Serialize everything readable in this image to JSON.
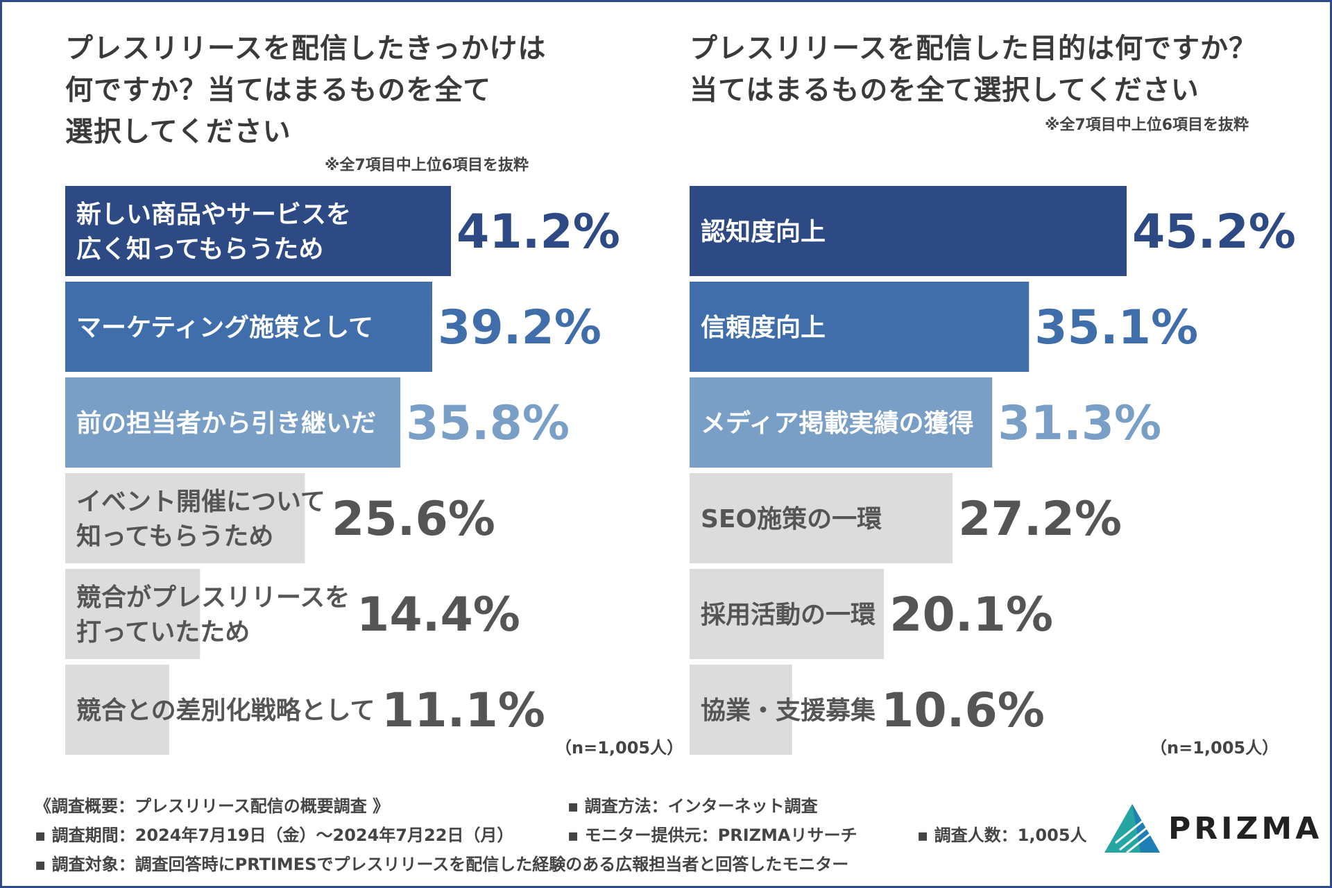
{
  "chart_data": [
    {
      "type": "bar",
      "orientation": "horizontal",
      "title": "プレスリリースを配信したきっかけは何ですか？当てはまるものを全て選択してください",
      "title_lines": [
        "プレスリリースを配信したきっかけは",
        "何ですか？当てはまるものを全て",
        "選択してください"
      ],
      "note": "※全7項目中上位6項目を抜粋",
      "sample": "（n=1,005人）",
      "xlim": [
        0,
        45.2
      ],
      "unit": "%",
      "categories": [
        [
          "新しい商品やサービスを",
          "広く知ってもらうため"
        ],
        [
          "マーケティング施策として"
        ],
        [
          "前の担当者から引き継いだ"
        ],
        [
          "イベント開催について",
          "知ってもらうため"
        ],
        [
          "競合がプレスリリースを",
          "打っていたため"
        ],
        [
          "競合との差別化戦略として"
        ]
      ],
      "values": [
        41.2,
        39.2,
        35.8,
        25.6,
        14.4,
        11.1
      ],
      "value_labels": [
        "41.2%",
        "39.2%",
        "35.8%",
        "25.6%",
        "14.4%",
        "11.1%"
      ],
      "bar_colors": [
        "#2d4a85",
        "#3f6eaa",
        "#7a9fc6",
        "#dcdcdc",
        "#dcdcdc",
        "#dcdcdc"
      ],
      "label_colors": [
        "#ffffff",
        "#ffffff",
        "#ffffff",
        "#555555",
        "#555555",
        "#555555"
      ],
      "value_colors": [
        "#2d4a85",
        "#3f6eaa",
        "#7a9fc6",
        "#555555",
        "#555555",
        "#555555"
      ]
    },
    {
      "type": "bar",
      "orientation": "horizontal",
      "title": "プレスリリースを配信した目的は何ですか？当てはまるものを全て選択してください",
      "title_lines": [
        "プレスリリースを配信した目的は何ですか？",
        "当てはまるものを全て選択してください"
      ],
      "note": "※全7項目中上位6項目を抜粋",
      "sample": "（n=1,005人）",
      "xlim": [
        0,
        45.2
      ],
      "unit": "%",
      "categories": [
        [
          "認知度向上"
        ],
        [
          "信頼度向上"
        ],
        [
          "メディア掲載実績の獲得"
        ],
        [
          "SEO施策の一環"
        ],
        [
          "採用活動の一環"
        ],
        [
          "協業・支援募集"
        ]
      ],
      "values": [
        45.2,
        35.1,
        31.3,
        27.2,
        20.1,
        10.6
      ],
      "value_labels": [
        "45.2%",
        "35.1%",
        "31.3%",
        "27.2%",
        "20.1%",
        "10.6%"
      ],
      "bar_colors": [
        "#2d4a85",
        "#3f6eaa",
        "#7a9fc6",
        "#dcdcdc",
        "#dcdcdc",
        "#dcdcdc"
      ],
      "label_colors": [
        "#ffffff",
        "#ffffff",
        "#ffffff",
        "#555555",
        "#555555",
        "#555555"
      ],
      "value_colors": [
        "#2d4a85",
        "#3f6eaa",
        "#7a9fc6",
        "#555555",
        "#555555",
        "#555555"
      ]
    }
  ],
  "footer": {
    "overview": "《調査概要：プレスリリース配信の概要調査 》",
    "period": "▪ 調査期間：2024年7月19日（金）〜2024年7月22日（月）",
    "target": "▪ 調査対象：調査回答時にPRTIMESでプレスリリースを配信した経験のある広報担当者と回答したモニター",
    "method": "▪ 調査方法：インターネット調査",
    "provider": "▪ モニター提供元：PRIZMAリサーチ",
    "count": "▪ 調査人数：1,005人"
  },
  "logo": {
    "text": "PRIZMA"
  }
}
